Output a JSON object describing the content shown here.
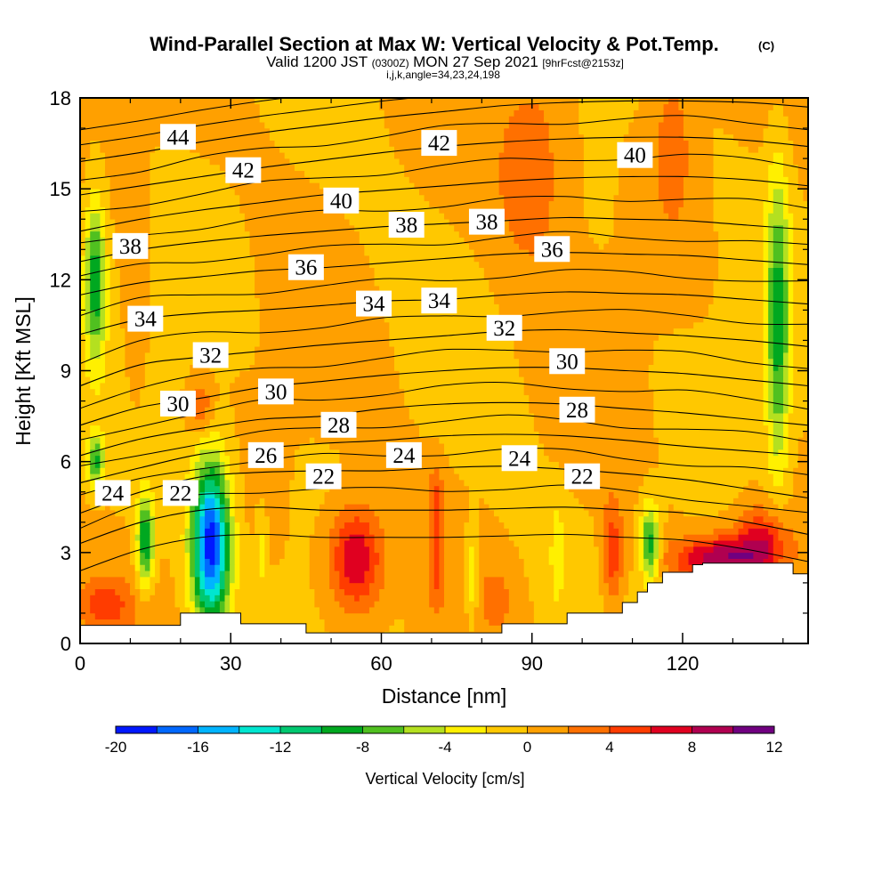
{
  "chart_data": {
    "type": "heatmap",
    "title": "Wind-Parallel Section at Max W: Vertical Velocity & Pot.Temp.",
    "title_mark": "(C)",
    "subtitle_main": "Valid 1200 JST",
    "subtitle_utc": "(0300Z)",
    "subtitle_date": "MON 27 Sep 2021",
    "subtitle_fcst": "[9hrFcst@2153z]",
    "subtitle2": "i,j,k,angle=34,23,24,198",
    "xlabel": "Distance [nm]",
    "ylabel": "Height [Kft MSL]",
    "xlim": [
      0,
      145
    ],
    "ylim": [
      0,
      18
    ],
    "x_ticks": [
      "0",
      "30",
      "60",
      "90",
      "120"
    ],
    "x_tick_values": [
      0,
      30,
      60,
      90,
      120
    ],
    "y_ticks": [
      "0",
      "3",
      "6",
      "9",
      "12",
      "15",
      "18"
    ],
    "y_tick_values": [
      0,
      3,
      6,
      9,
      12,
      15,
      18
    ],
    "colorbar": {
      "label": "Vertical Velocity [cm/s]",
      "min": -20,
      "max": 12,
      "step": 2,
      "tick_labels": [
        "-20",
        "-16",
        "-12",
        "-8",
        "-4",
        "0",
        "4",
        "8",
        "12"
      ],
      "tick_values": [
        -20,
        -16,
        -12,
        -8,
        -4,
        0,
        4,
        8,
        12
      ],
      "colors": [
        "#0018ff",
        "#0068ff",
        "#00b4ff",
        "#00e6d0",
        "#00c870",
        "#00a820",
        "#50c020",
        "#b4e020",
        "#fff000",
        "#ffc800",
        "#ffa000",
        "#ff7000",
        "#ff3c00",
        "#e00020",
        "#b00050",
        "#700080"
      ]
    },
    "background_w": 0,
    "features": [
      {
        "name": "updraft",
        "x": 55,
        "y": 2.8,
        "rx": 5,
        "ry": 1.6,
        "w": 8.4
      },
      {
        "name": "updraft",
        "x": 71,
        "y": 4.5,
        "rx": 1.3,
        "ry": 1.3,
        "w": 5
      },
      {
        "name": "updraft",
        "x": 71,
        "y": 2.3,
        "rx": 1.5,
        "ry": 1.3,
        "w": 3.5
      },
      {
        "name": "updraft",
        "x": 106,
        "y": 2.9,
        "rx": 2,
        "ry": 1.7,
        "w": 5.5
      },
      {
        "name": "updraft",
        "x": 128,
        "y": 2.8,
        "rx": 9,
        "ry": 0.7,
        "w": 9.5
      },
      {
        "name": "updraft",
        "x": 136,
        "y": 3.5,
        "rx": 5,
        "ry": 1.0,
        "w": 6
      },
      {
        "name": "updraft",
        "x": 24,
        "y": 7.8,
        "rx": 2.3,
        "ry": 0.8,
        "w": 4
      },
      {
        "name": "updraft",
        "x": 90,
        "y": 15.8,
        "rx": 7,
        "ry": 3.2,
        "w": 3.6
      },
      {
        "name": "updraft",
        "x": 118,
        "y": 16.5,
        "rx": 4,
        "ry": 2.8,
        "w": 3
      },
      {
        "name": "updraft",
        "x": 11,
        "y": 10.5,
        "rx": 2,
        "ry": 2.8,
        "w": 2.2
      },
      {
        "name": "updraft",
        "x": 5,
        "y": 1.3,
        "rx": 5,
        "ry": 0.8,
        "w": 4.5
      },
      {
        "name": "updraft",
        "x": 83,
        "y": 1.5,
        "rx": 3,
        "ry": 1.0,
        "w": 2.2
      },
      {
        "name": "downdraft",
        "x": 26,
        "y": 3.3,
        "rx": 3.5,
        "ry": 2.5,
        "w": -19.5
      },
      {
        "name": "downdraft",
        "x": 13,
        "y": 3.4,
        "rx": 1.6,
        "ry": 1.4,
        "w": -10
      },
      {
        "name": "downdraft",
        "x": 3,
        "y": 12.0,
        "rx": 2,
        "ry": 2.5,
        "w": -9.5
      },
      {
        "name": "downdraft",
        "x": 3,
        "y": 6.0,
        "rx": 1.6,
        "ry": 0.8,
        "w": -8.5
      },
      {
        "name": "downdraft",
        "x": 113.5,
        "y": 3.3,
        "rx": 1.8,
        "ry": 1.2,
        "w": -9.5
      },
      {
        "name": "downdraft",
        "x": 139,
        "y": 10.5,
        "rx": 2.2,
        "ry": 4.8,
        "w": -8.5
      },
      {
        "name": "downdraft",
        "x": 78,
        "y": 2.2,
        "rx": 1.2,
        "ry": 1.5,
        "w": -4.5
      },
      {
        "name": "downdraft",
        "x": 95,
        "y": 3.0,
        "rx": 1.2,
        "ry": 1.6,
        "w": -3
      },
      {
        "name": "downdraft",
        "x": 36,
        "y": 3.0,
        "rx": 1.0,
        "ry": 1.2,
        "w": -3
      }
    ],
    "terrain": {
      "x": [
        0,
        20,
        20,
        32,
        32,
        45,
        45,
        84,
        84,
        97,
        97,
        108,
        108,
        111,
        111,
        113,
        113,
        116,
        116,
        119,
        119,
        122,
        122,
        124,
        124,
        132,
        132,
        142,
        142,
        145
      ],
      "height": [
        0.6,
        0.6,
        1.0,
        1.0,
        0.65,
        0.65,
        0.35,
        0.35,
        0.65,
        0.65,
        1.0,
        1.0,
        1.35,
        1.35,
        1.7,
        1.7,
        2.0,
        2.0,
        2.35,
        2.35,
        2.35,
        2.35,
        2.6,
        2.6,
        2.65,
        2.65,
        2.65,
        2.65,
        2.3,
        2.3
      ]
    },
    "theta_contours": [
      {
        "value": "22",
        "heights": [
          3.3,
          4.0,
          4.4,
          4.5,
          4.4,
          4.4,
          4.4,
          4.45,
          4.5,
          4.4,
          4.3,
          4.0,
          3.6
        ]
      },
      {
        "value": "24",
        "heights": [
          4.3,
          5.0,
          5.5,
          5.65,
          5.7,
          5.7,
          5.8,
          5.85,
          5.75,
          5.6,
          5.4,
          5.1,
          4.8
        ]
      },
      {
        "value": "26",
        "heights": [
          5.3,
          5.8,
          6.25,
          6.45,
          6.6,
          6.7,
          6.85,
          6.9,
          6.85,
          6.7,
          6.5,
          6.35,
          6.2
        ]
      },
      {
        "value": "28",
        "heights": [
          6.2,
          6.75,
          7.1,
          7.4,
          7.5,
          7.75,
          7.9,
          7.95,
          7.9,
          7.75,
          7.6,
          7.4,
          7.2
        ]
      },
      {
        "value": "30",
        "heights": [
          7.2,
          7.8,
          8.1,
          8.45,
          8.65,
          8.85,
          9.0,
          9.1,
          9.1,
          9.0,
          8.9,
          8.7,
          8.5
        ]
      },
      {
        "value": "32",
        "heights": [
          8.5,
          9.2,
          9.45,
          9.65,
          9.85,
          10.0,
          10.15,
          10.3,
          10.35,
          10.25,
          10.15,
          10.0,
          9.8
        ]
      },
      {
        "value": "34",
        "heights": [
          10.2,
          10.7,
          10.9,
          11.0,
          11.15,
          11.3,
          11.35,
          11.5,
          11.6,
          11.55,
          11.5,
          11.35,
          11.2
        ]
      },
      {
        "value": "36",
        "heights": [
          11.5,
          11.9,
          12.1,
          12.3,
          12.4,
          12.55,
          12.7,
          12.85,
          12.9,
          12.85,
          12.8,
          12.65,
          12.5
        ]
      },
      {
        "value": "38",
        "heights": [
          12.6,
          13.0,
          13.25,
          13.45,
          13.6,
          13.75,
          13.85,
          13.95,
          14.05,
          14.0,
          13.95,
          13.8,
          13.65
        ]
      },
      {
        "value": "40",
        "heights": [
          13.6,
          14.0,
          14.3,
          14.55,
          14.8,
          14.95,
          15.1,
          15.25,
          15.35,
          15.4,
          15.4,
          15.3,
          15.1
        ]
      },
      {
        "value": "42",
        "heights": [
          14.8,
          15.1,
          15.4,
          15.7,
          15.95,
          16.2,
          16.4,
          16.55,
          16.65,
          16.7,
          16.7,
          16.6,
          16.4
        ]
      },
      {
        "value": "44",
        "heights": [
          15.9,
          16.2,
          16.55,
          16.85,
          17.1,
          17.35,
          17.55,
          17.75,
          17.85,
          17.9,
          17.9,
          17.85,
          17.7
        ]
      }
    ],
    "contour_label_items": [
      {
        "text": "44",
        "x": 19.5,
        "y": 16.7
      },
      {
        "text": "42",
        "x": 32.5,
        "y": 15.6
      },
      {
        "text": "40",
        "x": 52,
        "y": 14.6
      },
      {
        "text": "42",
        "x": 71.5,
        "y": 16.5
      },
      {
        "text": "40",
        "x": 110.5,
        "y": 16.1
      },
      {
        "text": "38",
        "x": 10,
        "y": 13.1
      },
      {
        "text": "38",
        "x": 65,
        "y": 13.8
      },
      {
        "text": "38",
        "x": 81,
        "y": 13.9
      },
      {
        "text": "36",
        "x": 45,
        "y": 12.4
      },
      {
        "text": "36",
        "x": 94,
        "y": 13.0
      },
      {
        "text": "34",
        "x": 13,
        "y": 10.7
      },
      {
        "text": "34",
        "x": 58.5,
        "y": 11.2
      },
      {
        "text": "34",
        "x": 71.5,
        "y": 11.3
      },
      {
        "text": "32",
        "x": 26,
        "y": 9.5
      },
      {
        "text": "32",
        "x": 84.5,
        "y": 10.4
      },
      {
        "text": "30",
        "x": 19.5,
        "y": 7.9
      },
      {
        "text": "30",
        "x": 39,
        "y": 8.3
      },
      {
        "text": "30",
        "x": 97,
        "y": 9.3
      },
      {
        "text": "28",
        "x": 51.5,
        "y": 7.2
      },
      {
        "text": "28",
        "x": 99,
        "y": 7.7
      },
      {
        "text": "26",
        "x": 37,
        "y": 6.2
      },
      {
        "text": "24",
        "x": 6.5,
        "y": 4.95
      },
      {
        "text": "24",
        "x": 64.5,
        "y": 6.2
      },
      {
        "text": "24",
        "x": 87.5,
        "y": 6.1
      },
      {
        "text": "22",
        "x": 20,
        "y": 4.95
      },
      {
        "text": "22",
        "x": 48.5,
        "y": 5.5
      },
      {
        "text": "22",
        "x": 100,
        "y": 5.5
      }
    ]
  }
}
